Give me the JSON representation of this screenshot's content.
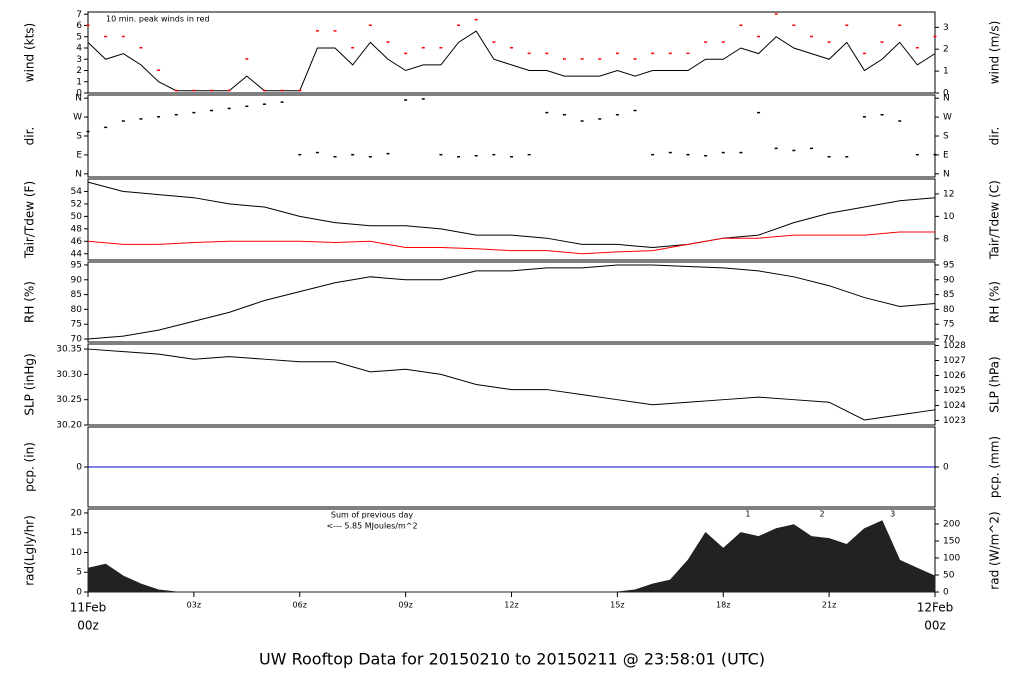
{
  "title": "UW Rooftop Data for 20150210  to  20150211 @ 23:58:01  (UTC)",
  "title_color": "#0000cc",
  "xaxis": {
    "xlim": [
      0,
      24
    ],
    "xticks": [
      {
        "value": 0,
        "label": "00z"
      },
      {
        "value": 3,
        "label": "03z"
      },
      {
        "value": 6,
        "label": "06z"
      },
      {
        "value": 9,
        "label": "09z"
      },
      {
        "value": 12,
        "label": "12z"
      },
      {
        "value": 15,
        "label": "15z"
      },
      {
        "value": 18,
        "label": "18z"
      },
      {
        "value": 21,
        "label": "21z"
      },
      {
        "value": 24,
        "label": "00z"
      }
    ],
    "date_labels": [
      {
        "value": 0,
        "label": "11Feb"
      },
      {
        "value": 24,
        "label": "12Feb"
      }
    ],
    "edge_color": "#ff0000"
  },
  "chart_data": [
    {
      "type": "line",
      "ylabel": "wind (kts)",
      "y2label": "wind (m/s)",
      "ylim": [
        0,
        7.2
      ],
      "yticks": [
        0,
        1,
        2,
        3,
        4,
        5,
        6,
        7
      ],
      "y2lim": [
        0,
        3.7
      ],
      "y2ticks": [
        0,
        1,
        2,
        3
      ],
      "annotation": "10 min. peak winds in red",
      "annotation_color": "#ff0000",
      "x": [
        0,
        0.5,
        1,
        1.5,
        2,
        2.5,
        3,
        3.5,
        4,
        4.5,
        5,
        5.5,
        6,
        6.5,
        7,
        7.5,
        8,
        8.5,
        9,
        9.5,
        10,
        10.5,
        11,
        11.5,
        12,
        12.5,
        13,
        13.5,
        14,
        14.5,
        15,
        15.5,
        16,
        16.5,
        17,
        17.5,
        18,
        18.5,
        19,
        19.5,
        20,
        20.5,
        21,
        21.5,
        22,
        22.5,
        23,
        23.5,
        24
      ],
      "series": [
        {
          "type": "line",
          "color": "#000000",
          "values": [
            4.5,
            3,
            3.5,
            2.5,
            1,
            0.2,
            0.2,
            0.2,
            0.2,
            1.5,
            0.2,
            0.2,
            0.2,
            4,
            4,
            2.5,
            4.5,
            3,
            2,
            2.5,
            2.5,
            4.5,
            5.5,
            3,
            2.5,
            2,
            2,
            1.5,
            1.5,
            1.5,
            2,
            1.5,
            2,
            2,
            2,
            3,
            3,
            4,
            3.5,
            5,
            4,
            3.5,
            3,
            4.5,
            2,
            3,
            4.5,
            2.5,
            3.5
          ]
        },
        {
          "type": "points",
          "color": "#ff0000",
          "values": [
            6,
            5,
            5,
            4,
            2,
            0.2,
            0.2,
            0.2,
            0.2,
            3,
            0.2,
            0.2,
            0.2,
            5.5,
            5.5,
            4,
            6,
            4.5,
            3.5,
            4,
            4,
            6,
            6.5,
            4.5,
            4,
            3.5,
            3.5,
            3,
            3,
            3,
            3.5,
            3,
            3.5,
            3.5,
            3.5,
            4.5,
            4.5,
            6,
            5,
            7,
            6,
            5,
            4.5,
            6,
            3.5,
            4.5,
            6,
            4,
            5
          ]
        }
      ]
    },
    {
      "type": "scatter",
      "ylabel": "dir.",
      "y2label": "dir.",
      "ylim": [
        -15,
        375
      ],
      "yticks": [
        {
          "value": 0,
          "label": "N"
        },
        {
          "value": 90,
          "label": "E"
        },
        {
          "value": 180,
          "label": "S"
        },
        {
          "value": 270,
          "label": "W"
        },
        {
          "value": 360,
          "label": "N"
        }
      ],
      "y2lim": [
        -15,
        375
      ],
      "y2ticks": [
        {
          "value": 0,
          "label": "N"
        },
        {
          "value": 90,
          "label": "E"
        },
        {
          "value": 180,
          "label": "S"
        },
        {
          "value": 270,
          "label": "W"
        },
        {
          "value": 360,
          "label": "N"
        }
      ],
      "x": [
        0,
        0.5,
        1,
        1.5,
        2,
        2.5,
        3,
        3.5,
        4,
        4.5,
        5,
        5.5,
        6,
        6.5,
        7,
        7.5,
        8,
        8.5,
        9,
        9.5,
        10,
        10.5,
        11,
        11.5,
        12,
        12.5,
        13,
        13.5,
        14,
        14.5,
        15,
        15.5,
        16,
        16.5,
        17,
        17.5,
        18,
        18.5,
        19,
        19.5,
        20,
        20.5,
        21,
        21.5,
        22,
        22.5,
        23,
        23.5,
        24
      ],
      "series": [
        {
          "type": "points",
          "color": "#000000",
          "values": [
            200,
            220,
            250,
            260,
            270,
            280,
            290,
            300,
            310,
            320,
            330,
            340,
            90,
            100,
            80,
            90,
            80,
            95,
            350,
            355,
            90,
            80,
            85,
            90,
            80,
            90,
            290,
            280,
            250,
            260,
            280,
            300,
            90,
            100,
            90,
            85,
            100,
            100,
            290,
            120,
            110,
            120,
            80,
            80,
            270,
            280,
            250,
            90,
            90
          ]
        }
      ]
    },
    {
      "type": "line",
      "ylabel": "Tair/Tdew (F)",
      "y2label": "Tair/Tdew (C)",
      "ylim": [
        43,
        56
      ],
      "yticks": [
        44,
        46,
        48,
        50,
        52,
        54
      ],
      "y2lim": [
        6.11,
        13.33
      ],
      "y2ticks": [
        8,
        10,
        12
      ],
      "x": [
        0,
        1,
        2,
        3,
        4,
        5,
        6,
        7,
        8,
        9,
        10,
        11,
        12,
        13,
        14,
        15,
        16,
        17,
        18,
        19,
        20,
        21,
        22,
        23,
        24
      ],
      "series": [
        {
          "type": "line",
          "color": "#000000",
          "values": [
            55.5,
            54,
            53.5,
            53,
            52,
            51.5,
            50,
            49,
            48.5,
            48.5,
            48,
            47,
            47,
            46.5,
            45.5,
            45.5,
            45,
            45.5,
            46.5,
            47,
            49,
            50.5,
            51.5,
            52.5,
            53
          ]
        },
        {
          "type": "line",
          "color": "#ff0000",
          "values": [
            46,
            45.5,
            45.5,
            45.8,
            46,
            46,
            46,
            45.8,
            46,
            45,
            45,
            44.8,
            44.5,
            44.5,
            44,
            44.3,
            44.5,
            45.5,
            46.5,
            46.5,
            47,
            47,
            47,
            47.5,
            47.5
          ]
        }
      ]
    },
    {
      "type": "line",
      "ylabel": "RH (%)",
      "y2label": "RH (%)",
      "ylim": [
        69,
        96
      ],
      "yticks": [
        70,
        75,
        80,
        85,
        90,
        95
      ],
      "y2lim": [
        69,
        96
      ],
      "y2ticks": [
        70,
        75,
        80,
        85,
        90,
        95
      ],
      "x": [
        0,
        1,
        2,
        3,
        4,
        5,
        6,
        7,
        8,
        9,
        10,
        11,
        12,
        13,
        14,
        15,
        16,
        17,
        18,
        19,
        20,
        21,
        22,
        23,
        24
      ],
      "series": [
        {
          "type": "line",
          "color": "#000000",
          "values": [
            70,
            71,
            73,
            76,
            79,
            83,
            86,
            89,
            91,
            90,
            90,
            93,
            93,
            94,
            94,
            95,
            95,
            94.5,
            94,
            93,
            91,
            88,
            84,
            81,
            82
          ]
        }
      ]
    },
    {
      "type": "line",
      "ylabel": "SLP (inHg)",
      "y2label": "SLP (hPa)",
      "ylim": [
        30.2,
        30.36
      ],
      "yticks": [
        {
          "value": 30.2,
          "label": "30.20"
        },
        {
          "value": 30.25,
          "label": "30.25"
        },
        {
          "value": 30.3,
          "label": "30.30"
        },
        {
          "value": 30.35,
          "label": "30.35"
        }
      ],
      "y2lim": [
        1022.7,
        1028.1
      ],
      "y2ticks": [
        1023,
        1024,
        1025,
        1026,
        1027,
        1028
      ],
      "x": [
        0,
        1,
        2,
        3,
        4,
        5,
        6,
        7,
        8,
        9,
        10,
        11,
        12,
        13,
        14,
        15,
        16,
        17,
        18,
        19,
        20,
        21,
        22,
        23,
        24
      ],
      "series": [
        {
          "type": "line",
          "color": "#000000",
          "values": [
            30.35,
            30.345,
            30.34,
            30.33,
            30.335,
            30.33,
            30.325,
            30.325,
            30.305,
            30.31,
            30.3,
            30.28,
            30.27,
            30.27,
            30.26,
            30.25,
            30.24,
            30.245,
            30.25,
            30.255,
            30.25,
            30.245,
            30.21,
            30.22,
            30.23
          ]
        }
      ]
    },
    {
      "type": "line",
      "ylabel": "pcp. (in)",
      "y2label": "pcp. (mm)",
      "ylim": [
        -1,
        1
      ],
      "yticks": [
        0
      ],
      "y2lim": [
        -1,
        1
      ],
      "y2ticks": [
        0
      ],
      "x": [
        0,
        24
      ],
      "series": [
        {
          "type": "line",
          "color": "#0000cc",
          "values": [
            0,
            0
          ]
        }
      ]
    },
    {
      "type": "area",
      "ylabel": "rad(Lgly/hr)",
      "y2label": "rad (W/m^2)",
      "ylim": [
        0,
        21
      ],
      "yticks": [
        0,
        5,
        10,
        15,
        20
      ],
      "y2lim": [
        0,
        244
      ],
      "y2ticks": [
        0,
        50,
        100,
        150,
        200
      ],
      "annotations": [
        "Sum of previous day",
        "<--- 5.85 MJoules/m^2"
      ],
      "annotation_color": "#9900cc",
      "markers": [
        {
          "x": 18.7,
          "label": "1"
        },
        {
          "x": 20.8,
          "label": "2"
        },
        {
          "x": 22.8,
          "label": "3"
        }
      ],
      "x": [
        0,
        0.5,
        1,
        1.5,
        2,
        2.5,
        3,
        3.5,
        4,
        4.5,
        5,
        5.5,
        6,
        6.5,
        7,
        7.5,
        8,
        8.5,
        9,
        9.5,
        10,
        10.5,
        11,
        11.5,
        12,
        12.5,
        13,
        13.5,
        14,
        14.5,
        15,
        15.5,
        16,
        16.5,
        17,
        17.5,
        18,
        18.5,
        19,
        19.5,
        20,
        20.5,
        21,
        21.5,
        22,
        22.5,
        23,
        23.5,
        24
      ],
      "series": [
        {
          "type": "area",
          "color": "#222222",
          "values": [
            6,
            7,
            4,
            2,
            0.5,
            0,
            0,
            0,
            0,
            0,
            0,
            0,
            0,
            0,
            0,
            0,
            0,
            0,
            0,
            0,
            0,
            0,
            0,
            0,
            0,
            0,
            0,
            0,
            0,
            0,
            0,
            0.5,
            2,
            3,
            8,
            15,
            11,
            15,
            14,
            16,
            17,
            14,
            13.5,
            12,
            16,
            18,
            8,
            6,
            4
          ]
        }
      ]
    }
  ]
}
